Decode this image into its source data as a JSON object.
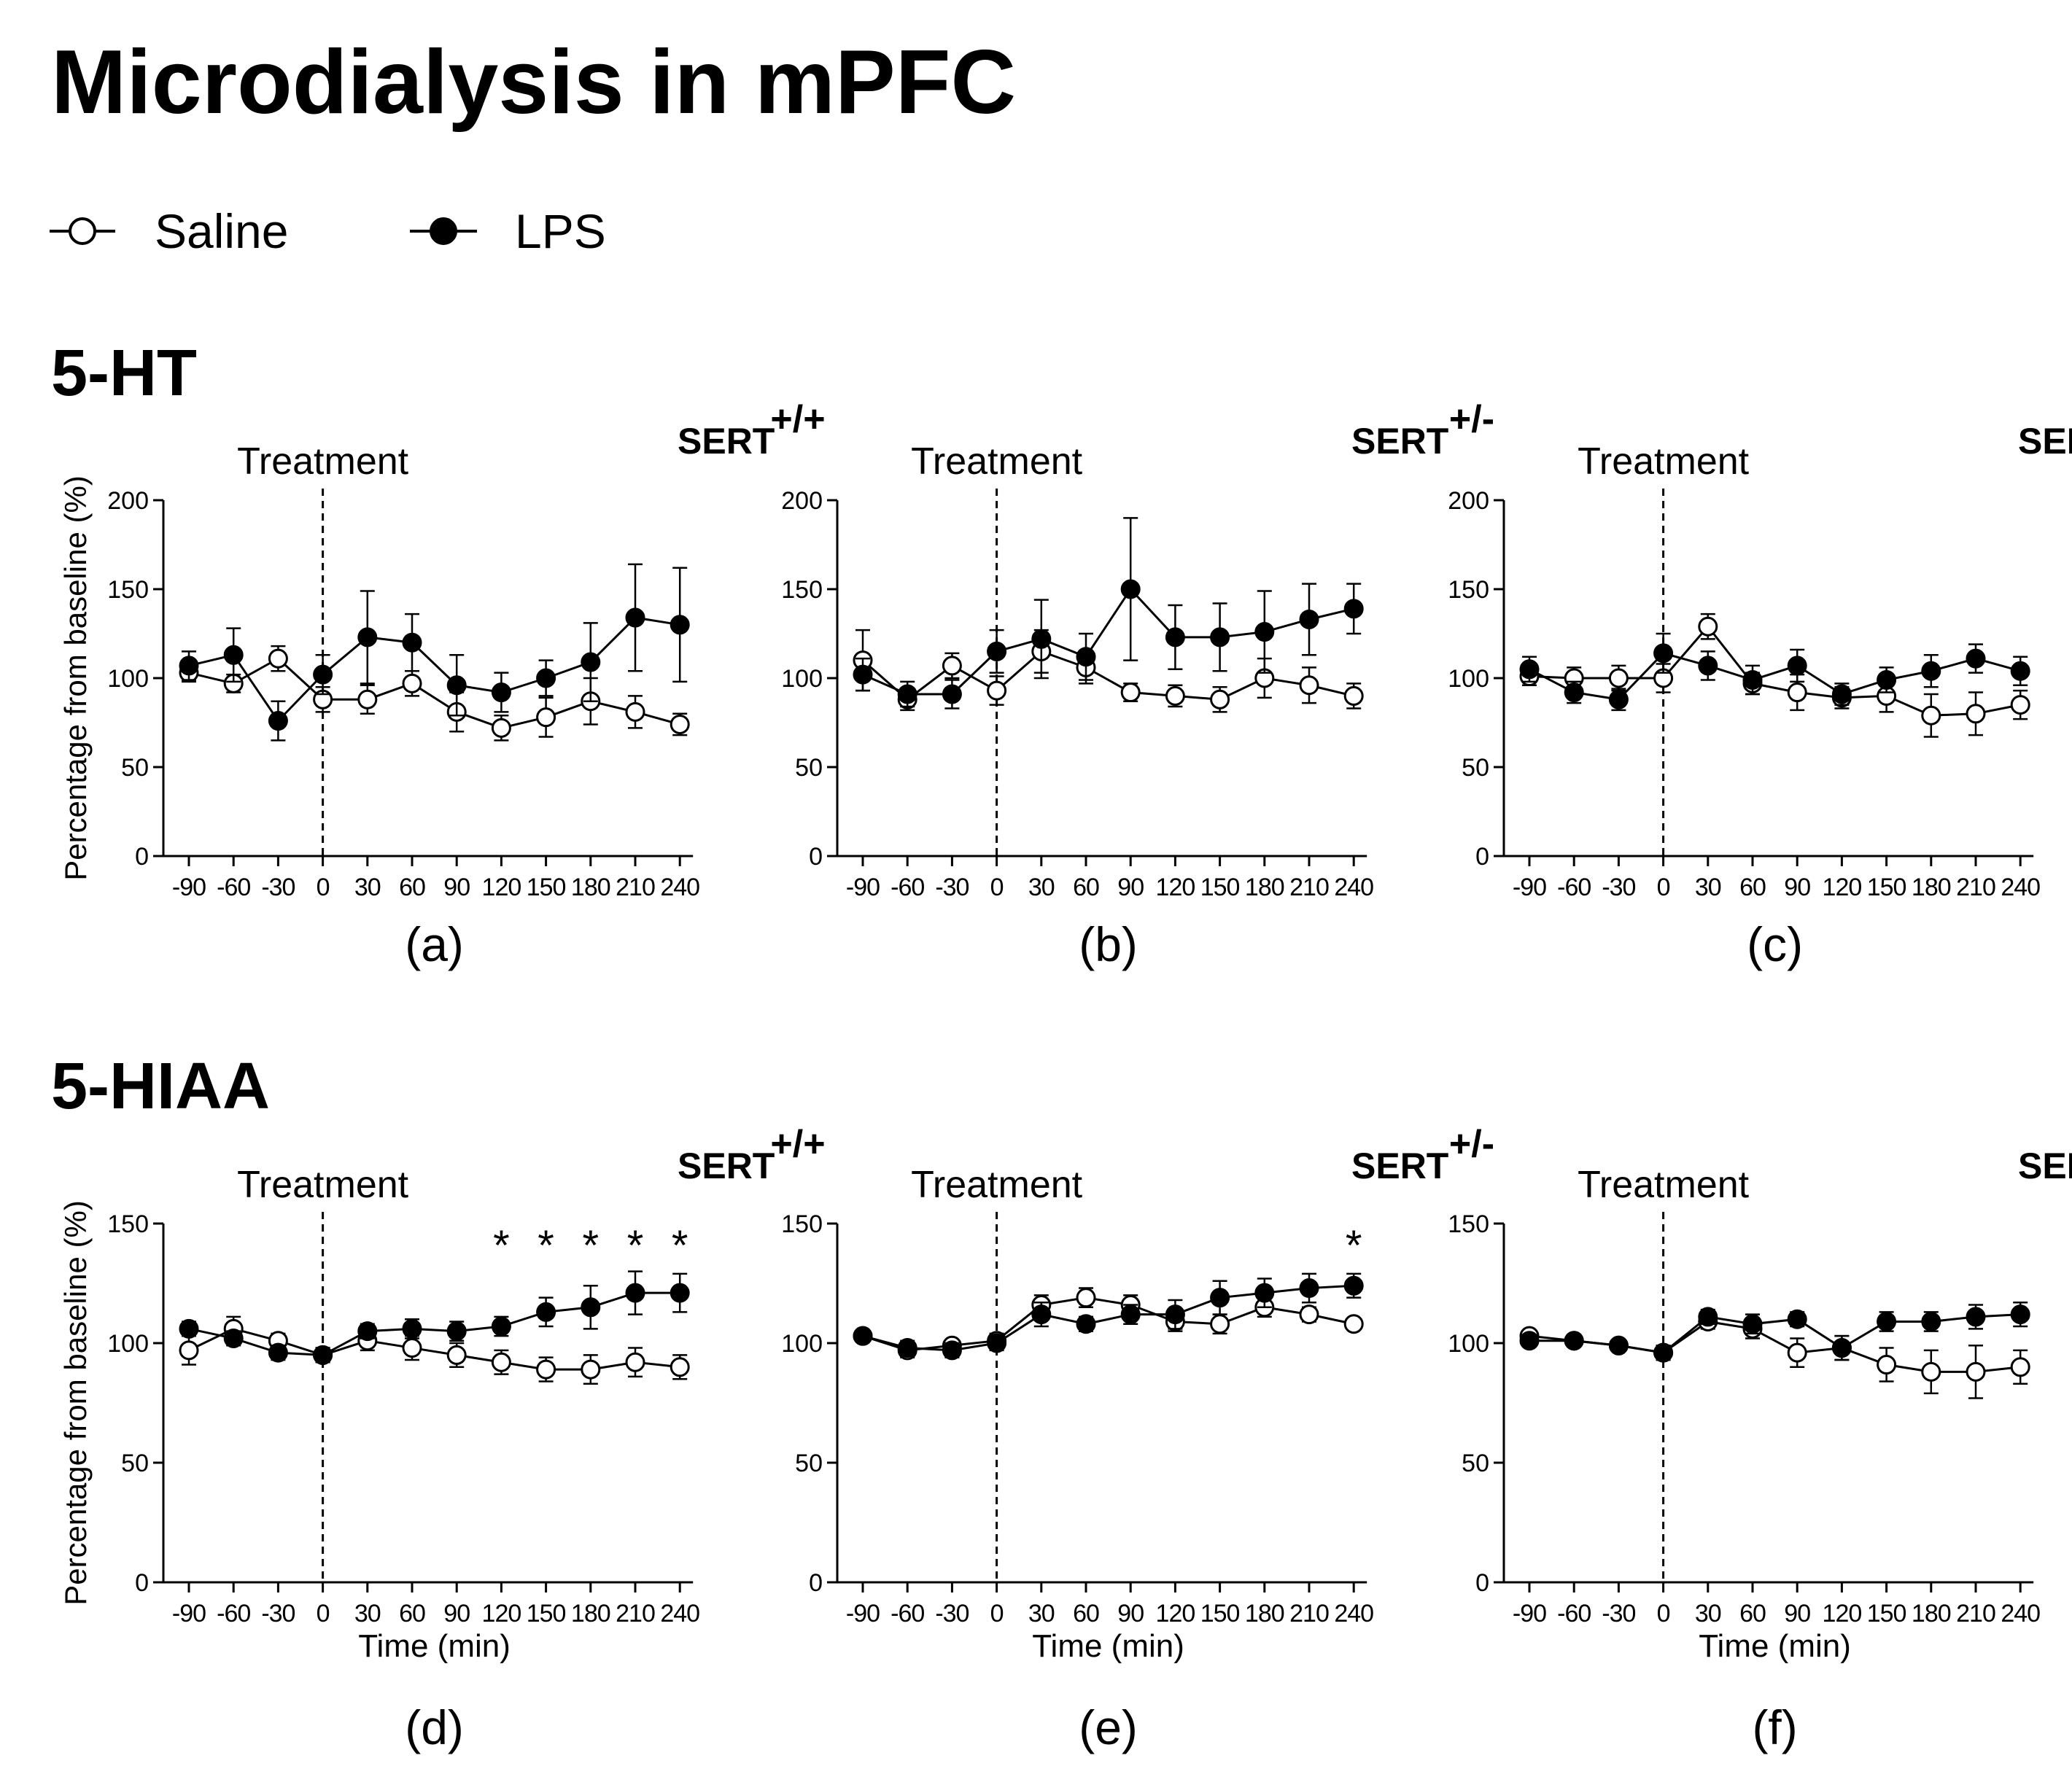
{
  "title": "Microdialysis in mPFC",
  "legend": {
    "saline": "Saline",
    "lps": "LPS"
  },
  "sections": {
    "top": "5-HT",
    "bottom": "5-HIAA"
  },
  "colors": {
    "line": "#000000",
    "saline_fill": "#ffffff",
    "lps_fill": "#000000",
    "background": "#ffffff"
  },
  "chart_data": [
    {
      "type": "line",
      "label": "(a)",
      "analyte": "5-HT",
      "genotype": "SERT",
      "genotype_sup": "+/+",
      "annotation": "Treatment",
      "treatment_at": 0,
      "x": [
        -90,
        -60,
        -30,
        0,
        30,
        60,
        90,
        120,
        150,
        180,
        210,
        240
      ],
      "xticks": [
        "-90",
        "-60",
        "-30",
        "0",
        "30",
        "60",
        "90",
        "120",
        "150",
        "180",
        "210",
        "240"
      ],
      "ylim": [
        0,
        200
      ],
      "yticks": [
        "0",
        "50",
        "100",
        "150",
        "200"
      ],
      "ylabel": "Percentage from baseline (%)",
      "xlabel": "",
      "series": [
        {
          "name": "Saline",
          "values": [
            103,
            97,
            111,
            88,
            88,
            97,
            81,
            72,
            78,
            87,
            81,
            74
          ],
          "errors": [
            5,
            5,
            7,
            7,
            8,
            7,
            11,
            7,
            11,
            13,
            9,
            6
          ]
        },
        {
          "name": "LPS",
          "values": [
            107,
            113,
            76,
            102,
            123,
            120,
            96,
            92,
            100,
            109,
            134,
            130
          ],
          "errors": [
            8,
            15,
            11,
            11,
            26,
            16,
            17,
            11,
            10,
            22,
            30,
            32
          ]
        }
      ],
      "significance": []
    },
    {
      "type": "line",
      "label": "(b)",
      "analyte": "5-HT",
      "genotype": "SERT",
      "genotype_sup": "+/-",
      "annotation": "Treatment",
      "treatment_at": 0,
      "x": [
        -90,
        -60,
        -30,
        0,
        30,
        60,
        90,
        120,
        150,
        180,
        210,
        240
      ],
      "xticks": [
        "-90",
        "-60",
        "-30",
        "0",
        "30",
        "60",
        "90",
        "120",
        "150",
        "180",
        "210",
        "240"
      ],
      "ylim": [
        0,
        200
      ],
      "yticks": [
        "0",
        "50",
        "100",
        "150",
        "200"
      ],
      "ylabel": "",
      "xlabel": "",
      "series": [
        {
          "name": "Saline",
          "values": [
            110,
            88,
            107,
            93,
            115,
            106,
            92,
            90,
            88,
            100,
            96,
            90
          ],
          "errors": [
            17,
            6,
            7,
            8,
            12,
            9,
            5,
            6,
            7,
            11,
            10,
            7
          ]
        },
        {
          "name": "LPS",
          "values": [
            102,
            91,
            91,
            115,
            122,
            112,
            150,
            123,
            123,
            126,
            133,
            139
          ],
          "errors": [
            9,
            7,
            8,
            12,
            22,
            13,
            40,
            18,
            19,
            23,
            20,
            14
          ]
        }
      ],
      "significance": []
    },
    {
      "type": "line",
      "label": "(c)",
      "analyte": "5-HT",
      "genotype": "SERT",
      "genotype_sup": "-/-",
      "annotation": "Treatment",
      "treatment_at": 0,
      "x": [
        -90,
        -60,
        -30,
        0,
        30,
        60,
        90,
        120,
        150,
        180,
        210,
        240
      ],
      "xticks": [
        "-90",
        "-60",
        "-30",
        "0",
        "30",
        "60",
        "90",
        "120",
        "150",
        "180",
        "210",
        "240"
      ],
      "ylim": [
        0,
        200
      ],
      "yticks": [
        "0",
        "50",
        "100",
        "150",
        "200"
      ],
      "ylabel": "",
      "xlabel": "",
      "series": [
        {
          "name": "Saline",
          "values": [
            101,
            100,
            100,
            100,
            129,
            97,
            92,
            89,
            90,
            79,
            80,
            85
          ],
          "errors": [
            5,
            6,
            7,
            8,
            7,
            6,
            10,
            6,
            9,
            12,
            12,
            8
          ]
        },
        {
          "name": "LPS",
          "values": [
            105,
            92,
            88,
            114,
            107,
            99,
            107,
            91,
            99,
            104,
            111,
            104
          ],
          "errors": [
            7,
            6,
            6,
            11,
            8,
            8,
            9,
            6,
            7,
            9,
            8,
            8
          ]
        }
      ],
      "significance": []
    },
    {
      "type": "line",
      "label": "(d)",
      "analyte": "5-HIAA",
      "genotype": "SERT",
      "genotype_sup": "+/+",
      "annotation": "Treatment",
      "treatment_at": 0,
      "x": [
        -90,
        -60,
        -30,
        0,
        30,
        60,
        90,
        120,
        150,
        180,
        210,
        240
      ],
      "xticks": [
        "-90",
        "-60",
        "-30",
        "0",
        "30",
        "60",
        "90",
        "120",
        "150",
        "180",
        "210",
        "240"
      ],
      "ylim": [
        0,
        150
      ],
      "yticks": [
        "0",
        "50",
        "100",
        "150"
      ],
      "ylabel": "Percentage from baseline (%)",
      "xlabel": "Time (min)",
      "series": [
        {
          "name": "Saline",
          "values": [
            97,
            106,
            101,
            95,
            101,
            98,
            95,
            92,
            89,
            89,
            92,
            90
          ],
          "errors": [
            6,
            5,
            3,
            3,
            4,
            5,
            5,
            5,
            5,
            6,
            6,
            5
          ]
        },
        {
          "name": "LPS",
          "values": [
            106,
            102,
            96,
            95,
            105,
            106,
            105,
            107,
            113,
            115,
            121,
            121
          ],
          "errors": [
            3,
            3,
            3,
            3,
            3,
            4,
            4,
            4,
            6,
            9,
            9,
            8
          ]
        }
      ],
      "significance": [
        {
          "x": 120,
          "mark": "*"
        },
        {
          "x": 150,
          "mark": "*"
        },
        {
          "x": 180,
          "mark": "*"
        },
        {
          "x": 210,
          "mark": "*"
        },
        {
          "x": 240,
          "mark": "*"
        }
      ]
    },
    {
      "type": "line",
      "label": "(e)",
      "analyte": "5-HIAA",
      "genotype": "SERT",
      "genotype_sup": "+/-",
      "annotation": "Treatment",
      "treatment_at": 0,
      "x": [
        -90,
        -60,
        -30,
        0,
        30,
        60,
        90,
        120,
        150,
        180,
        210,
        240
      ],
      "xticks": [
        "-90",
        "-60",
        "-30",
        "0",
        "30",
        "60",
        "90",
        "120",
        "150",
        "180",
        "210",
        "240"
      ],
      "ylim": [
        0,
        150
      ],
      "yticks": [
        "0",
        "50",
        "100",
        "150"
      ],
      "ylabel": "",
      "xlabel": "Time (min)",
      "series": [
        {
          "name": "Saline",
          "values": [
            103,
            97,
            99,
            101,
            116,
            119,
            116,
            109,
            108,
            115,
            112,
            108
          ],
          "errors": [
            2,
            3,
            2,
            3,
            4,
            4,
            4,
            4,
            4,
            4,
            3,
            2
          ]
        },
        {
          "name": "LPS",
          "values": [
            103,
            98,
            97,
            100,
            112,
            108,
            112,
            112,
            119,
            121,
            123,
            124
          ],
          "errors": [
            2,
            3,
            3,
            3,
            5,
            3,
            4,
            6,
            7,
            6,
            6,
            5
          ]
        }
      ],
      "significance": [
        {
          "x": 240,
          "mark": "*"
        }
      ]
    },
    {
      "type": "line",
      "label": "(f)",
      "analyte": "5-HIAA",
      "genotype": "SERT",
      "genotype_sup": "-/-",
      "annotation": "Treatment",
      "treatment_at": 0,
      "x": [
        -90,
        -60,
        -30,
        0,
        30,
        60,
        90,
        120,
        150,
        180,
        210,
        240
      ],
      "xticks": [
        "-90",
        "-60",
        "-30",
        "0",
        "30",
        "60",
        "90",
        "120",
        "150",
        "180",
        "210",
        "240"
      ],
      "ylim": [
        0,
        150
      ],
      "yticks": [
        "0",
        "50",
        "100",
        "150"
      ],
      "ylabel": "",
      "xlabel": "Time (min)",
      "series": [
        {
          "name": "Saline",
          "values": [
            103,
            101,
            99,
            96,
            109,
            106,
            96,
            98,
            91,
            88,
            88,
            90
          ],
          "errors": [
            2,
            2,
            2,
            3,
            3,
            4,
            6,
            5,
            7,
            9,
            11,
            7
          ]
        },
        {
          "name": "LPS",
          "values": [
            101,
            101,
            99,
            96,
            111,
            108,
            110,
            98,
            109,
            109,
            111,
            112
          ],
          "errors": [
            2,
            2,
            2,
            3,
            3,
            4,
            3,
            5,
            4,
            4,
            5,
            5
          ]
        }
      ],
      "significance": []
    }
  ]
}
